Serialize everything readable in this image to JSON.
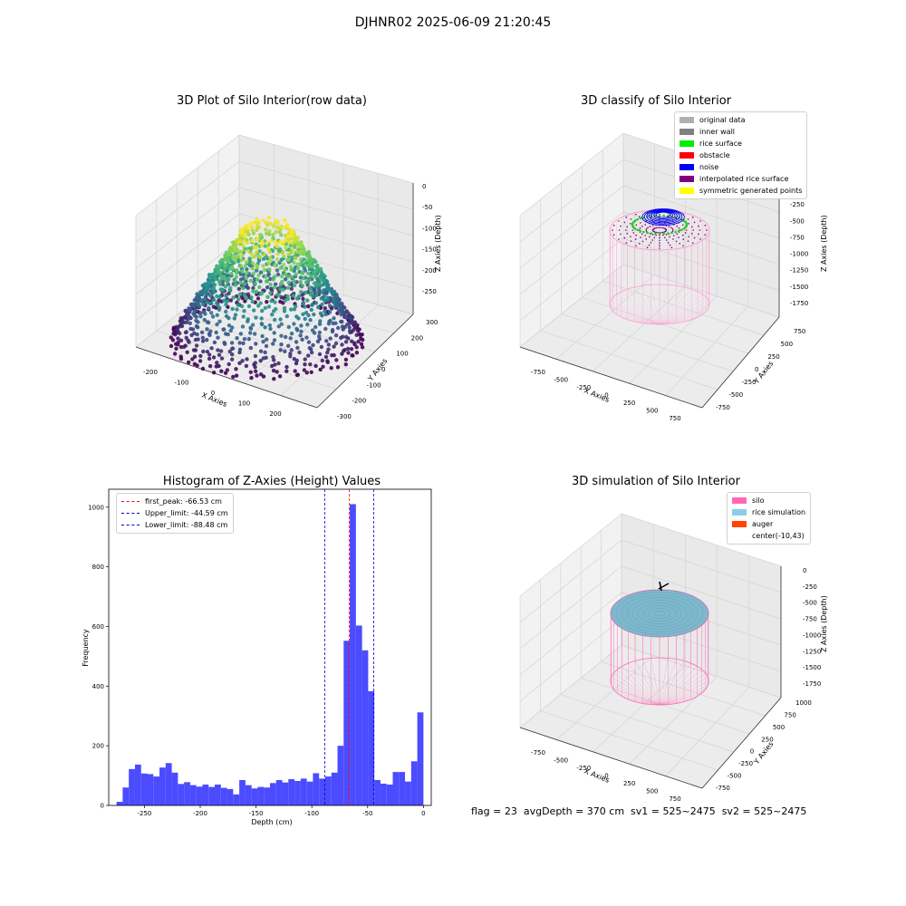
{
  "suptitle": "DJHNR02 2025-06-09 21:20:45",
  "status_text": "flag = 23  avgDepth = 370 cm  sv1 = 525~2475  sv2 = 525~2475",
  "panels": {
    "raw": {
      "title": "3D Plot of Silo Interior(row data)",
      "xlabel": "X Axies",
      "ylabel": "Y Axies",
      "zlabel": "Z Axies (Depth)",
      "xticks": [
        "-200",
        "-100",
        "0",
        "100",
        "200"
      ],
      "yticks": [
        "300",
        "200",
        "100",
        "0",
        "-100",
        "-200",
        "-300"
      ],
      "zticks": [
        "0",
        "-50",
        "-100",
        "-150",
        "-200",
        "-250"
      ]
    },
    "classify": {
      "title": "3D classify of Silo Interior",
      "xlabel": "X Axies",
      "ylabel": "Y Axies",
      "zlabel": "Z Axies (Depth)",
      "xticks": [
        "-750",
        "-500",
        "-250",
        "0",
        "250",
        "500",
        "750"
      ],
      "yticks": [
        "750",
        "500",
        "250",
        "0",
        "-250",
        "-500",
        "-750"
      ],
      "zticks": [
        "0",
        "-250",
        "-500",
        "-750",
        "-1000",
        "-1250",
        "-1500",
        "-1750"
      ],
      "legend": [
        {
          "label": "original data",
          "color": "#b0b0b0"
        },
        {
          "label": "inner wall",
          "color": "#808080"
        },
        {
          "label": "rice surface",
          "color": "#00ee00"
        },
        {
          "label": "obstacle",
          "color": "#ff0000"
        },
        {
          "label": "noise",
          "color": "#0000ff"
        },
        {
          "label": "interpolated rice surface",
          "color": "#800080"
        },
        {
          "label": "symmetric generated points",
          "color": "#ffff00"
        }
      ]
    },
    "simulation": {
      "title": "3D simulation of Silo Interior",
      "xlabel": "X Axies",
      "ylabel": "Y Axies",
      "zlabel": "Z Axies (Depth)",
      "xticks": [
        "-750",
        "-500",
        "-250",
        "0",
        "250",
        "500",
        "750"
      ],
      "yticks": [
        "1000",
        "750",
        "500",
        "250",
        "0",
        "-250",
        "-500",
        "-750"
      ],
      "zticks": [
        "0",
        "-250",
        "-500",
        "-750",
        "-1000",
        "-1250",
        "-1500",
        "-1750"
      ],
      "legend": [
        {
          "label": "silo",
          "color": "#ff69b4"
        },
        {
          "label": "rice simulation",
          "color": "#87ceeb"
        },
        {
          "label": "auger",
          "color": "#ff4500"
        },
        {
          "label": "center(-10,43)",
          "color": ""
        }
      ]
    }
  },
  "chart_data": [
    {
      "type": "bar",
      "title": "Histogram of Z-Axies (Height) Values",
      "xlabel": "Depth (cm)",
      "ylabel": "Frequency",
      "xlim": [
        -282,
        7
      ],
      "ylim": [
        0,
        1060
      ],
      "xticks": [
        -250,
        -200,
        -150,
        -100,
        -50,
        0
      ],
      "yticks": [
        0,
        200,
        400,
        600,
        800,
        1000
      ],
      "bar_color": "#4b4bff",
      "bin_width": 5.5,
      "bin_start": -275,
      "values": [
        12,
        60,
        122,
        137,
        107,
        105,
        97,
        127,
        142,
        110,
        72,
        78,
        68,
        63,
        70,
        62,
        70,
        59,
        55,
        37,
        85,
        68,
        57,
        62,
        60,
        75,
        85,
        77,
        88,
        82,
        90,
        80,
        108,
        90,
        97,
        110,
        200,
        552,
        1010,
        603,
        520,
        383,
        85,
        73,
        70,
        112,
        112,
        80,
        148,
        312
      ],
      "lines": [
        {
          "name": "first_peak: -66.53 cm",
          "x": -66.53,
          "color": "#ff0000"
        },
        {
          "name": "Upper_limit: -44.59 cm",
          "x": -44.59,
          "color": "#0000cc"
        },
        {
          "name": "Lower_limit: -88.48 cm",
          "x": -88.48,
          "color": "#0000cc"
        }
      ],
      "legend_position": "top-left"
    }
  ]
}
